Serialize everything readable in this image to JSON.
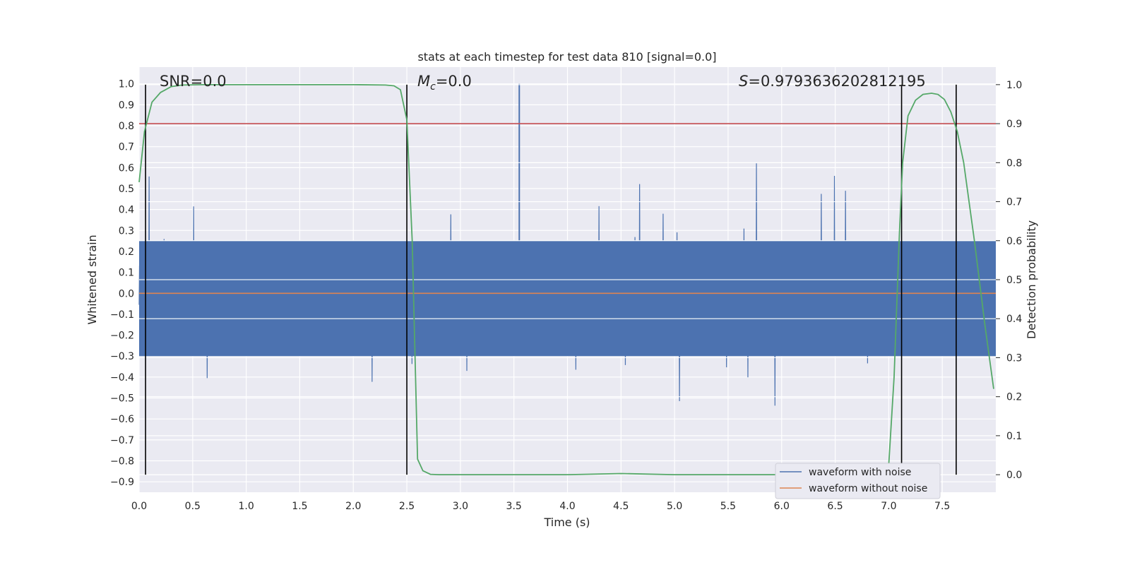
{
  "chart_data": {
    "type": "line",
    "title": "stats at each timestep for test data 810 [signal=0.0]",
    "xlabel": "Time (s)",
    "ylabel": "Whitened strain",
    "y2label": "Detection probability",
    "xlim": [
      0.0,
      8.0
    ],
    "ylim": [
      -0.95,
      1.08
    ],
    "y2lim": [
      -0.045,
      1.045
    ],
    "xticks": [
      "0.0",
      "0.5",
      "1.0",
      "1.5",
      "2.0",
      "2.5",
      "3.0",
      "3.5",
      "4.0",
      "4.5",
      "5.0",
      "5.5",
      "6.0",
      "6.5",
      "7.0",
      "7.5"
    ],
    "yticks": [
      "1.0",
      "0.9",
      "0.8",
      "0.7",
      "0.6",
      "0.5",
      "0.4",
      "0.3",
      "0.2",
      "0.1",
      "0.0",
      "-0.1",
      "-0.2",
      "-0.3",
      "-0.4",
      "-0.5",
      "-0.6",
      "-0.7",
      "-0.8",
      "-0.9"
    ],
    "y2ticks": [
      "1.0",
      "0.9",
      "0.8",
      "0.7",
      "0.6",
      "0.5",
      "0.4",
      "0.3",
      "0.2",
      "0.1",
      "0.0"
    ],
    "grid": true,
    "legend_position": "bottom-right",
    "annotations": {
      "snr": "SNR=0.0",
      "mc_symbol": "M",
      "mc_sub": "c",
      "mc_value": "=0.0",
      "s_symbol": "S",
      "s_value": "=0.9793636202812195"
    },
    "series": [
      {
        "name": "waveform with noise",
        "color": "#4c72b0",
        "axis": "left",
        "description_values": "noise between about -0.85 and 1.0, typical range -0.5 to 0.6"
      },
      {
        "name": "waveform without noise",
        "color": "#dd8452",
        "axis": "left",
        "values_constant": 0.0
      }
    ],
    "probability": {
      "color": "#55a868",
      "x": [
        0.0,
        0.05,
        0.12,
        0.2,
        0.3,
        0.4,
        0.6,
        1.0,
        2.0,
        2.3,
        2.38,
        2.44,
        2.5,
        2.55,
        2.6,
        2.65,
        2.72,
        2.8,
        3.0,
        4.0,
        4.5,
        5.0,
        6.0,
        6.9,
        7.0,
        7.05,
        7.1,
        7.13,
        7.18,
        7.25,
        7.32,
        7.4,
        7.46,
        7.52,
        7.58,
        7.64,
        7.7,
        7.8,
        7.9,
        7.98
      ],
      "y": [
        0.75,
        0.88,
        0.955,
        0.98,
        0.995,
        0.999,
        1.0,
        1.0,
        1.0,
        0.999,
        0.997,
        0.987,
        0.91,
        0.6,
        0.04,
        0.01,
        0.001,
        0.0,
        0.0,
        0.0,
        0.003,
        0.0,
        0.0,
        0.0,
        0.025,
        0.25,
        0.62,
        0.8,
        0.92,
        0.96,
        0.975,
        0.978,
        0.975,
        0.962,
        0.93,
        0.88,
        0.8,
        0.6,
        0.38,
        0.22
      ]
    },
    "threshold": {
      "value": 0.9,
      "axis": "right",
      "color": "#c44e52"
    },
    "vlines_x": [
      0.06,
      2.5,
      7.12,
      7.63
    ]
  }
}
